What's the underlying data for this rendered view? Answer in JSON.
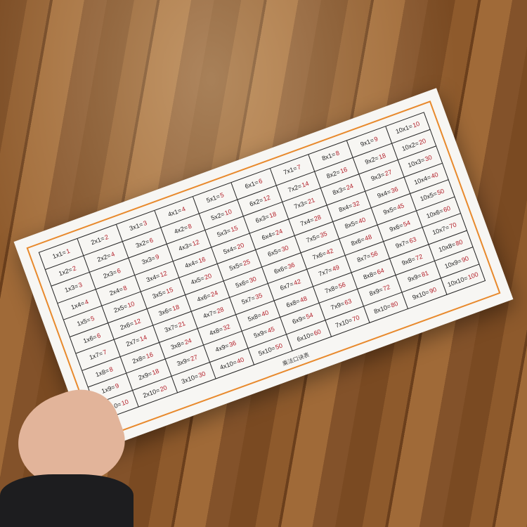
{
  "photo": {
    "subject": "multiplication-table-sheet",
    "paper_color": "#f7f6f3",
    "border_color": "#e8892c",
    "result_color": "#b3202a"
  },
  "sheet": {
    "footer": "乘法口诀表",
    "columns": [
      [
        [
          "1x1=",
          "1"
        ],
        [
          "1x2=",
          "2"
        ],
        [
          "1x3=",
          "3"
        ],
        [
          "1x4=",
          "4"
        ],
        [
          "1x5=",
          "5"
        ],
        [
          "1x6=",
          "6"
        ],
        [
          "1x7=",
          "7"
        ],
        [
          "1x8=",
          "8"
        ],
        [
          "1x9=",
          "9"
        ],
        [
          "1x10=",
          "10"
        ]
      ],
      [
        [
          "2x1=",
          "2"
        ],
        [
          "2x2=",
          "4"
        ],
        [
          "2x3=",
          "6"
        ],
        [
          "2x4=",
          "8"
        ],
        [
          "2x5=",
          "10"
        ],
        [
          "2x6=",
          "12"
        ],
        [
          "2x7=",
          "14"
        ],
        [
          "2x8=",
          "16"
        ],
        [
          "2x9=",
          "18"
        ],
        [
          "2x10=",
          "20"
        ]
      ],
      [
        [
          "3x1=",
          "3"
        ],
        [
          "3x2=",
          "6"
        ],
        [
          "3x3=",
          "9"
        ],
        [
          "3x4=",
          "12"
        ],
        [
          "3x5=",
          "15"
        ],
        [
          "3x6=",
          "18"
        ],
        [
          "3x7=",
          "21"
        ],
        [
          "3x8=",
          "24"
        ],
        [
          "3x9=",
          "27"
        ],
        [
          "3x10=",
          "30"
        ]
      ],
      [
        [
          "4x1=",
          "4"
        ],
        [
          "4x2=",
          "8"
        ],
        [
          "4x3=",
          "12"
        ],
        [
          "4x4=",
          "16"
        ],
        [
          "4x5=",
          "20"
        ],
        [
          "4x6=",
          "24"
        ],
        [
          "4x7=",
          "28"
        ],
        [
          "4x8=",
          "32"
        ],
        [
          "4x9=",
          "36"
        ],
        [
          "4x10=",
          "40"
        ]
      ],
      [
        [
          "5x1=",
          "5"
        ],
        [
          "5x2=",
          "10"
        ],
        [
          "5x3=",
          "15"
        ],
        [
          "5x4=",
          "20"
        ],
        [
          "5x5=",
          "25"
        ],
        [
          "5x6=",
          "30"
        ],
        [
          "5x7=",
          "35"
        ],
        [
          "5x8=",
          "40"
        ],
        [
          "5x9=",
          "45"
        ],
        [
          "5x10=",
          "50"
        ]
      ],
      [
        [
          "6x1=",
          "6"
        ],
        [
          "6x2=",
          "12"
        ],
        [
          "6x3=",
          "18"
        ],
        [
          "6x4=",
          "24"
        ],
        [
          "6x5=",
          "30"
        ],
        [
          "6x6=",
          "36"
        ],
        [
          "6x7=",
          "42"
        ],
        [
          "6x8=",
          "48"
        ],
        [
          "6x9=",
          "54"
        ],
        [
          "6x10=",
          "60"
        ]
      ],
      [
        [
          "7x1=",
          "7"
        ],
        [
          "7x2=",
          "14"
        ],
        [
          "7x3=",
          "21"
        ],
        [
          "7x4=",
          "28"
        ],
        [
          "7x5=",
          "35"
        ],
        [
          "7x6=",
          "42"
        ],
        [
          "7x7=",
          "49"
        ],
        [
          "7x8=",
          "56"
        ],
        [
          "7x9=",
          "63"
        ],
        [
          "7x10=",
          "70"
        ]
      ],
      [
        [
          "8x1=",
          "8"
        ],
        [
          "8x2=",
          "16"
        ],
        [
          "8x3=",
          "24"
        ],
        [
          "8x4=",
          "32"
        ],
        [
          "8x5=",
          "40"
        ],
        [
          "8x6=",
          "48"
        ],
        [
          "8x7=",
          "56"
        ],
        [
          "8x8=",
          "64"
        ],
        [
          "8x9=",
          "72"
        ],
        [
          "8x10=",
          "80"
        ]
      ],
      [
        [
          "9x1=",
          "9"
        ],
        [
          "9x2=",
          "18"
        ],
        [
          "9x3=",
          "27"
        ],
        [
          "9x4=",
          "36"
        ],
        [
          "9x5=",
          "45"
        ],
        [
          "9x6=",
          "54"
        ],
        [
          "9x7=",
          "63"
        ],
        [
          "9x8=",
          "72"
        ],
        [
          "9x9=",
          "81"
        ],
        [
          "9x10=",
          "90"
        ]
      ],
      [
        [
          "10x1=",
          "10"
        ],
        [
          "10x2=",
          "20"
        ],
        [
          "10x3=",
          "30"
        ],
        [
          "10x4=",
          "40"
        ],
        [
          "10x5=",
          "50"
        ],
        [
          "10x6=",
          "60"
        ],
        [
          "10x7=",
          "70"
        ],
        [
          "10x8=",
          "80"
        ],
        [
          "10x9=",
          "90"
        ],
        [
          "10x10=",
          "100"
        ]
      ]
    ]
  }
}
